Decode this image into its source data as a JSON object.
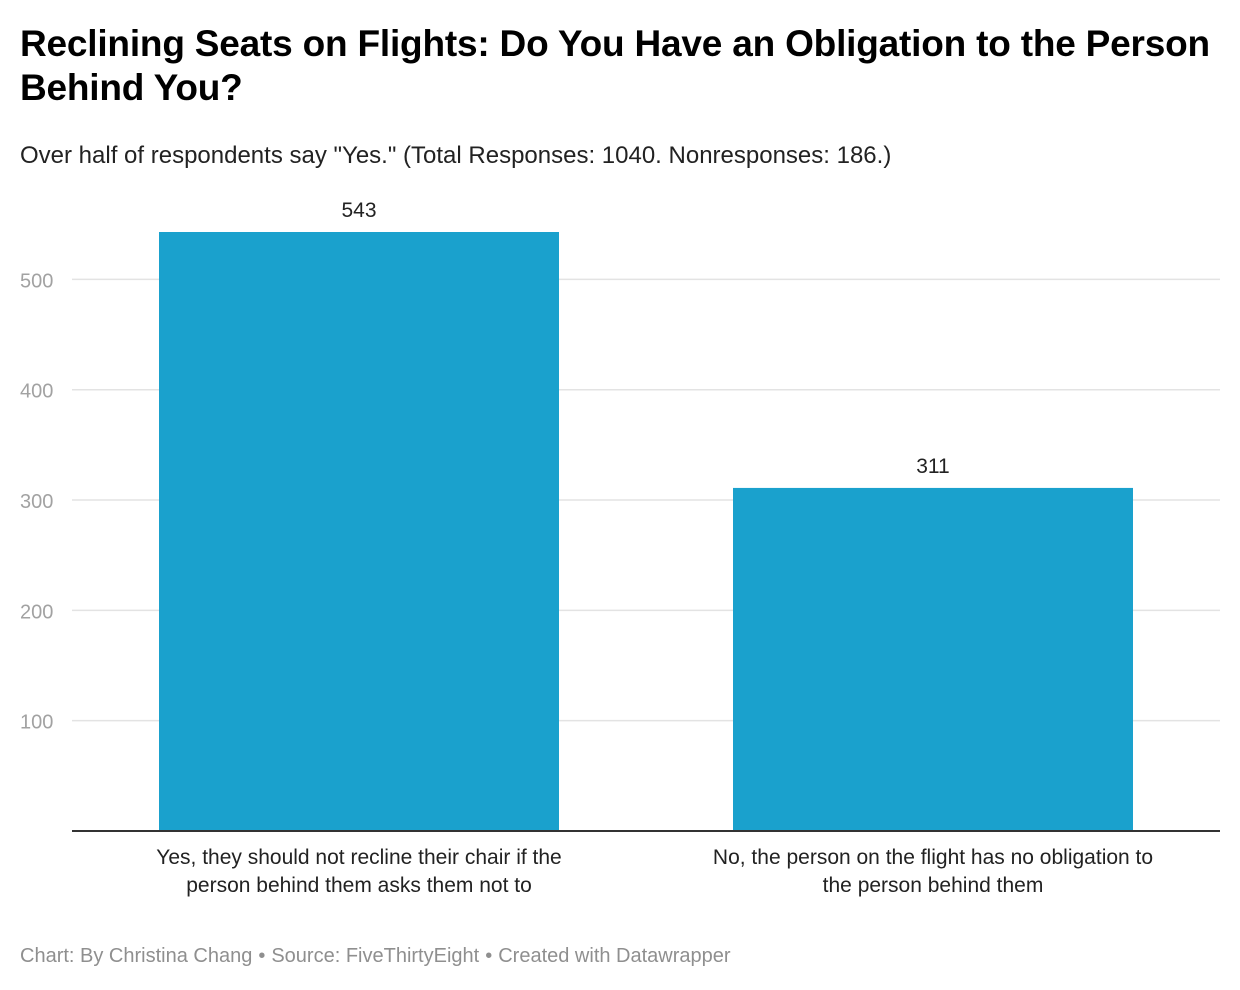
{
  "chart_data": {
    "type": "bar",
    "title": "Reclining Seats on Flights: Do You Have an Obligation to the Person Behind You?",
    "subtitle": "Over half of respondents say \"Yes.\" (Total Responses: 1040. Nonresponses: 186.)",
    "categories": [
      [
        "Yes, they should not recline their chair if the",
        "person behind them asks them not to"
      ],
      [
        "No, the person on the flight has no obligation to",
        "the person behind them"
      ]
    ],
    "values": [
      543,
      311
    ],
    "value_labels": [
      "543",
      "311"
    ],
    "yticks": [
      100,
      200,
      300,
      400,
      500
    ],
    "ylim": [
      0,
      543
    ],
    "grid": true,
    "xlabel": "",
    "ylabel": "",
    "bar_color": "#1aa1cd"
  },
  "footer": {
    "credit": "Chart: By Christina Chang",
    "source": "Source: FiveThirtyEight",
    "tool": "Created with Datawrapper",
    "separator": "•"
  }
}
